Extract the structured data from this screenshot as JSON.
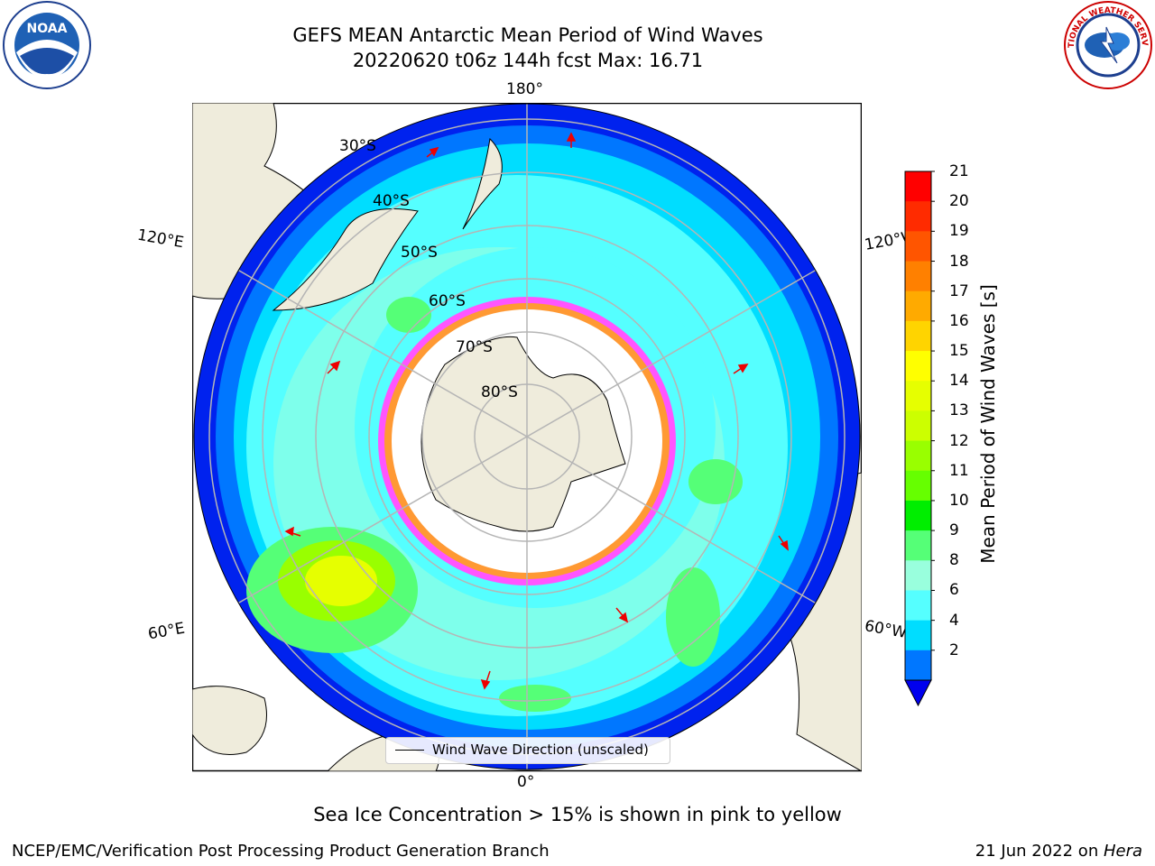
{
  "title": {
    "line1": "GEFS MEAN Antarctic Mean Period of Wind Waves",
    "line2": "20220620 t06z 144h fcst   Max: 16.71"
  },
  "logos": {
    "noara_text": "NOAA",
    "nws_ring_text": "NATIONAL WEATHER SERVICE"
  },
  "map": {
    "longitude_labels": {
      "top": "180°",
      "left_upper": "120°E",
      "right_upper": "120°W",
      "left_lower": "60°E",
      "right_lower": "60°W",
      "bottom": "0°"
    },
    "latitude_labels": [
      "30°S",
      "40°S",
      "50°S",
      "60°S",
      "70°S",
      "80°S"
    ],
    "legend_label": "Wind Wave Direction (unscaled)"
  },
  "colorbar": {
    "title": "Mean Period of Wind Waves [s]",
    "ticks": [
      "21",
      "20",
      "19",
      "18",
      "17",
      "16",
      "15",
      "14",
      "13",
      "12",
      "11",
      "10",
      "9",
      "8",
      "6",
      "4",
      "2"
    ],
    "colors": [
      "#ff0000",
      "#ff2b00",
      "#ff5500",
      "#ff8000",
      "#ffaa00",
      "#ffd400",
      "#ffff00",
      "#e6ff00",
      "#ccff00",
      "#99ff00",
      "#66ff00",
      "#00ee00",
      "#55ff77",
      "#99ffdd",
      "#55ffff",
      "#00ddff",
      "#0077ff",
      "#0000ee"
    ]
  },
  "caption": "Sea Ice Concentration > 15% is shown in pink to yellow",
  "footer": {
    "left": "NCEP/EMC/Verification Post Processing Product Generation Branch",
    "right_date": "21 Jun 2022 on ",
    "right_machine": "Hera"
  }
}
